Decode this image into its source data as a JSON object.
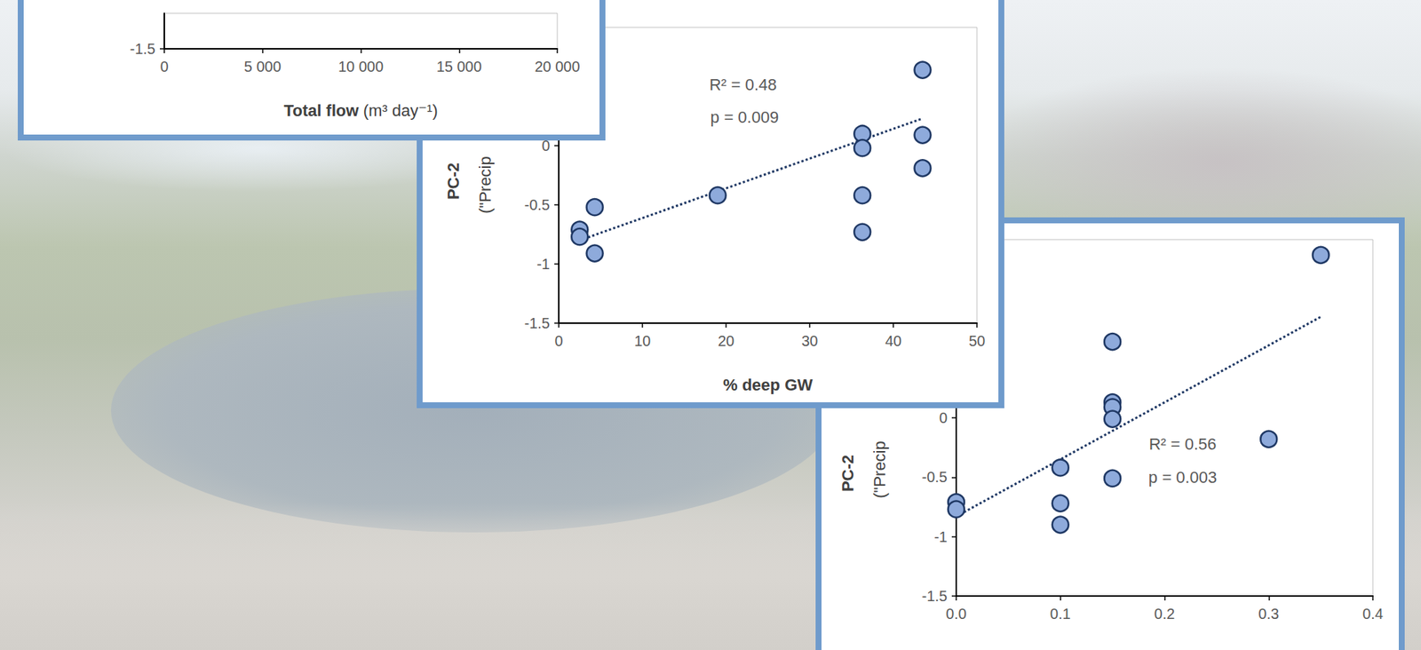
{
  "chart_data": [
    {
      "type": "scatter",
      "x_label": "Total flow (m³ day⁻¹)",
      "xlim": [
        0,
        20000
      ],
      "xticks": [
        0,
        {
          "value": 5000,
          "label": "5 000"
        },
        {
          "value": 10000,
          "label": "10 000"
        },
        {
          "value": 15000,
          "label": "15 000"
        },
        {
          "value": 20000,
          "label": "20 000"
        }
      ],
      "ylim": [
        -1.5,
        -1.2
      ],
      "yticks": [
        -1.5
      ],
      "grid": false,
      "series": [
        {
          "type": "scatter",
          "color": "#8eaadb",
          "marker": "circle",
          "x": [],
          "values": []
        }
      ]
    },
    {
      "type": "scatter",
      "x_label": "% deep GW",
      "y_label": "PC-2 (\"Precip",
      "annotations": [
        "R² = 0.48",
        "p = 0.009"
      ],
      "xlim": [
        0,
        50
      ],
      "xticks": [
        0,
        10,
        20,
        30,
        40,
        50
      ],
      "ylim": [
        -1.5,
        1.0
      ],
      "yticks": [
        -1.5,
        -1,
        -0.5,
        0
      ],
      "grid": false,
      "series": [
        {
          "type": "scatter",
          "color": "#8eaadb",
          "marker": "circle",
          "x": [
            43.5,
            36.3,
            43.5,
            36.3,
            43.5,
            36.3,
            19.0,
            36.3,
            4.3,
            2.5,
            2.5,
            4.3
          ],
          "values": [
            0.64,
            0.1,
            0.09,
            -0.02,
            -0.19,
            -0.42,
            -0.42,
            -0.73,
            -0.52,
            -0.71,
            -0.77,
            -0.91
          ]
        },
        {
          "type": "line",
          "color": "#1f3864",
          "marker": "none",
          "line_style": "dotted",
          "x": [
            2.5,
            43.5
          ],
          "values": [
            -0.8,
            0.23
          ]
        }
      ]
    },
    {
      "type": "scatter",
      "y_label": "PC-2 (\"Precip",
      "annotations": [
        "R² = 0.56",
        "p = 0.003"
      ],
      "xlim": [
        0,
        0.4
      ],
      "xticks": [
        {
          "value": 0,
          "label": "0.0"
        },
        0.1,
        0.2,
        0.3,
        0.4
      ],
      "ylim": [
        -1.5,
        1.5
      ],
      "yticks": [
        -1.5,
        -1,
        -0.5,
        0
      ],
      "grid": false,
      "series": [
        {
          "type": "scatter",
          "color": "#8eaadb",
          "marker": "circle",
          "x": [
            0.35,
            0.15,
            0.15,
            0.15,
            0.15,
            0.3,
            0.1,
            0.15,
            0.0,
            0.0,
            0.1,
            0.1
          ],
          "values": [
            1.37,
            0.64,
            0.13,
            0.09,
            -0.01,
            -0.18,
            -0.42,
            -0.51,
            -0.71,
            -0.77,
            -0.72,
            -0.9
          ]
        },
        {
          "type": "line",
          "color": "#1f3864",
          "marker": "none",
          "line_style": "dotted",
          "x": [
            0.0,
            0.35
          ],
          "values": [
            -0.83,
            0.85
          ]
        }
      ]
    }
  ]
}
